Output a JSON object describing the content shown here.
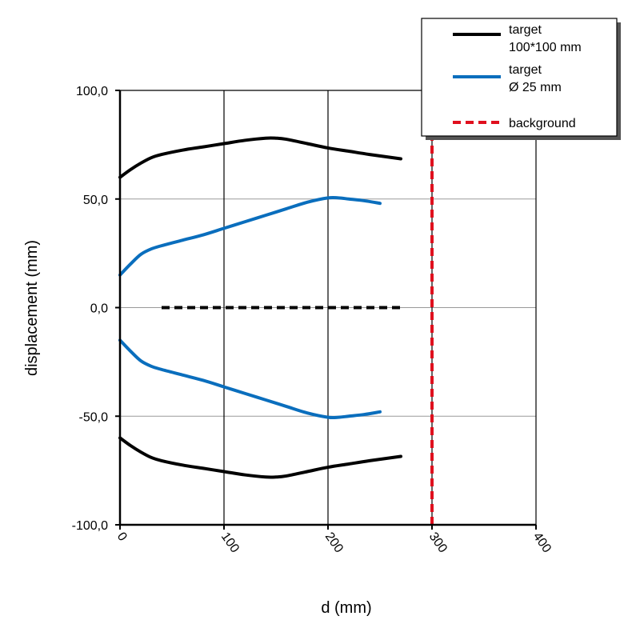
{
  "chart_data": {
    "type": "line",
    "xlabel": "d (mm)",
    "ylabel": "displacement (mm)",
    "xlim": [
      0,
      400
    ],
    "ylim": [
      -100,
      100
    ],
    "x_ticks": [
      "0",
      "100",
      "200",
      "300",
      "400"
    ],
    "y_ticks": [
      "100,0",
      "50,0",
      "0,0",
      "-50,0",
      "-100,0"
    ],
    "grid": {
      "x": true,
      "y": true
    },
    "legend_position": "top-right",
    "legend": [
      {
        "label_lines": [
          "target",
          "100*100 mm"
        ],
        "color": "#000000",
        "dash": "solid"
      },
      {
        "label_lines": [
          "target",
          "Ø 25 mm"
        ],
        "color": "#0a6ebd",
        "dash": "solid"
      },
      {
        "label_lines": [
          "background"
        ],
        "color": "#e0101e",
        "dash": "dashed"
      }
    ],
    "series": [
      {
        "color": "#000000",
        "dash": "solid",
        "x": [
          0,
          10,
          20,
          30,
          40,
          60,
          80,
          100,
          120,
          140,
          150,
          160,
          180,
          200,
          220,
          240,
          270
        ],
        "y": [
          60,
          63.5,
          66.5,
          69,
          70.5,
          72.5,
          74,
          75.5,
          77,
          78,
          78,
          77.5,
          75.5,
          73.5,
          72,
          70.5,
          68.5
        ]
      },
      {
        "color": "#000000",
        "dash": "solid",
        "x": [
          0,
          10,
          20,
          30,
          40,
          60,
          80,
          100,
          120,
          140,
          150,
          160,
          180,
          200,
          220,
          240,
          270
        ],
        "y": [
          -60,
          -63.5,
          -66.5,
          -69,
          -70.5,
          -72.5,
          -74,
          -75.5,
          -77,
          -78,
          -78,
          -77.5,
          -75.5,
          -73.5,
          -72,
          -70.5,
          -68.5
        ]
      },
      {
        "color": "#0a6ebd",
        "dash": "solid",
        "x": [
          0,
          10,
          20,
          30,
          40,
          60,
          80,
          100,
          120,
          140,
          160,
          180,
          200,
          210,
          220,
          235,
          250
        ],
        "y": [
          15,
          20,
          24.5,
          27,
          28.5,
          31,
          33.5,
          36.5,
          39.5,
          42.5,
          45.5,
          48.5,
          50.5,
          50.5,
          50,
          49.2,
          48
        ]
      },
      {
        "color": "#0a6ebd",
        "dash": "solid",
        "x": [
          0,
          10,
          20,
          30,
          40,
          60,
          80,
          100,
          120,
          140,
          160,
          180,
          200,
          210,
          220,
          235,
          250
        ],
        "y": [
          -15,
          -20,
          -24.5,
          -27,
          -28.5,
          -31,
          -33.5,
          -36.5,
          -39.5,
          -42.5,
          -45.5,
          -48.5,
          -50.5,
          -50.5,
          -50,
          -49.2,
          -48
        ]
      },
      {
        "color": "#000000",
        "dash": "dashed",
        "x": [
          40,
          270
        ],
        "y": [
          0,
          0
        ]
      },
      {
        "color": "#e0101e",
        "dash": "dashed",
        "x": [
          300,
          300
        ],
        "y": [
          -100,
          100
        ]
      }
    ]
  }
}
